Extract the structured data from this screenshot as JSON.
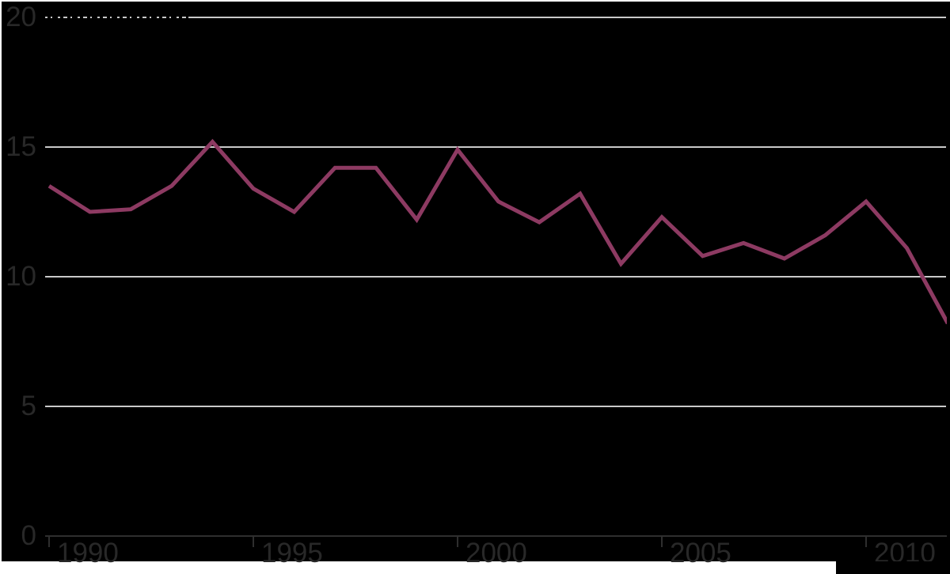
{
  "page": {
    "background_color": "#ffffff",
    "panel_background_color": "#000000"
  },
  "chart_data": {
    "type": "line",
    "x": [
      1990,
      1991,
      1992,
      1993,
      1994,
      1995,
      1996,
      1997,
      1998,
      1999,
      2000,
      2001,
      2002,
      2003,
      2004,
      2005,
      2006,
      2007,
      2008,
      2009,
      2010,
      2011,
      2012
    ],
    "values": [
      13.5,
      12.5,
      12.6,
      13.5,
      15.2,
      13.4,
      12.5,
      14.2,
      14.2,
      12.2,
      14.9,
      12.9,
      12.1,
      13.2,
      10.5,
      12.3,
      10.8,
      11.3,
      10.7,
      11.6,
      12.9,
      11.1,
      8.2
    ],
    "line_color": "#8d3a62",
    "line_width": 5,
    "x_ticks": [
      1990,
      1995,
      2000,
      2005,
      2010
    ],
    "x_tick_labels": [
      "1990",
      "1995",
      "2000",
      "2005",
      "2010"
    ],
    "y_ticks": [
      0,
      5,
      10,
      15,
      20
    ],
    "y_tick_labels": [
      "0",
      "5",
      "10",
      "15",
      "20"
    ],
    "ylim": [
      0,
      20
    ],
    "xlim": [
      1990,
      2012
    ],
    "grid": true,
    "legend_position": "none",
    "gridline_color": "#c9c9c9",
    "axis_text_color": "#282828",
    "axis_line_color": "#2e2e2e"
  }
}
